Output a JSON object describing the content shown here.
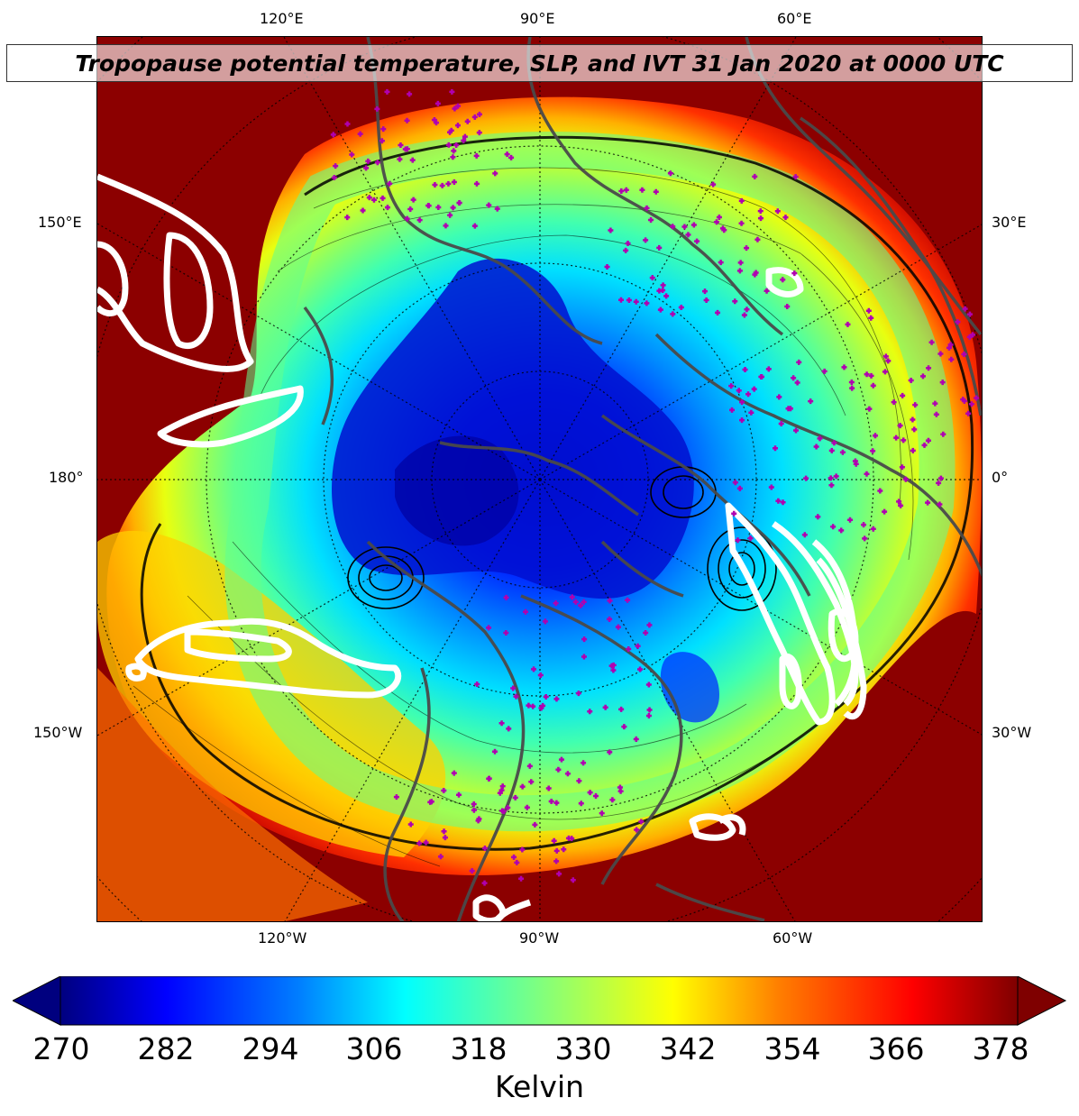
{
  "title": "Tropopause potential temperature, SLP, and IVT 31 Jan 2020 at 0000 UTC",
  "longitude_labels_top": [
    "120°E",
    "90°E",
    "60°E"
  ],
  "longitude_labels_bottom": [
    "120°W",
    "90°W",
    "60°W"
  ],
  "latitude_labels_left": [
    "150°E",
    "180°",
    "150°W"
  ],
  "latitude_labels_right": [
    "30°E",
    "0°",
    "30°W"
  ],
  "colorbar": {
    "label": "Kelvin",
    "ticks": [
      "270",
      "282",
      "294",
      "306",
      "318",
      "330",
      "342",
      "354",
      "366",
      "378"
    ],
    "colormap": "jet",
    "extend": "both",
    "colors": [
      "#00007f",
      "#0000ff",
      "#007fff",
      "#00ffff",
      "#7fff7f",
      "#ffff00",
      "#ff7f00",
      "#ff0000",
      "#7f0000"
    ]
  },
  "map": {
    "projection": "north polar stereographic",
    "field": "tropopause potential temperature (shaded)",
    "overlays": [
      "sea level pressure contours (black)",
      "IVT contours (white)",
      "coastlines and borders (gray)",
      "station markers (magenta +)"
    ],
    "gridlines": "dotted",
    "colors": {
      "coast": "#4a4a4a",
      "ivt_contour": "#ffffff",
      "station_marker": "#b000b0",
      "slp_contour": "#000000"
    }
  }
}
